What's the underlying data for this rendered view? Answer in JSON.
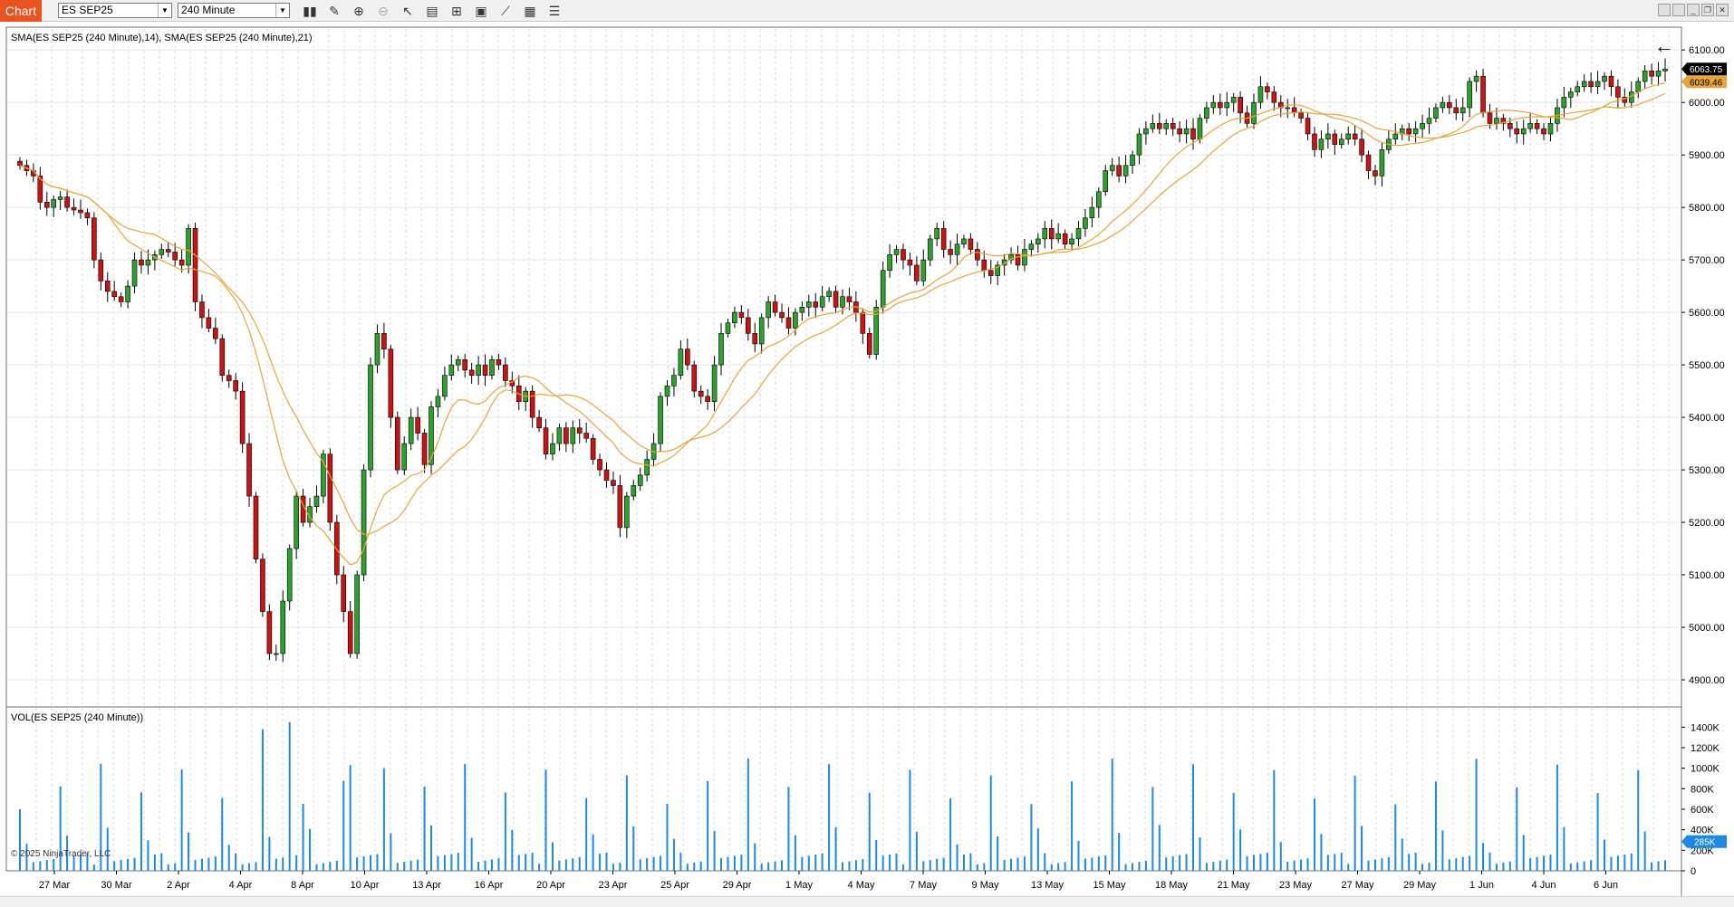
{
  "toolbar": {
    "tab_label": "Chart",
    "instrument": "ES SEP25",
    "interval": "240 Minute",
    "icons": [
      "bar-type-icon",
      "drawing-pencil-icon",
      "zoom-in-icon",
      "zoom-out-icon",
      "pointer-icon",
      "data-box-icon",
      "properties-icon",
      "templates-icon",
      "strategies-icon",
      "list-icon"
    ],
    "window_buttons": [
      "tile-icon",
      "tile2-icon",
      "minimize-icon",
      "restore-icon",
      "close-icon"
    ]
  },
  "price_panel": {
    "indicator_label": "SMA(ES SEP25 (240 Minute),14), SMA(ES SEP25 (240 Minute),21)",
    "y_ticks": [
      "6100.00",
      "6000.00",
      "5900.00",
      "5800.00",
      "5700.00",
      "5600.00",
      "5500.00",
      "5400.00",
      "5300.00",
      "5200.00",
      "5100.00",
      "5000.00",
      "4900.00"
    ],
    "last_price": "6063.75",
    "sma_value": "6039.46",
    "last_price_color": "#000000",
    "sma_color": "#e8a53a",
    "up_color": "#2ea02e",
    "down_color": "#c81414"
  },
  "volume_panel": {
    "label": "VOL(ES SEP25 (240 Minute))",
    "y_ticks": [
      "1400K",
      "1200K",
      "1000K",
      "800K",
      "600K",
      "400K",
      "200K",
      "0"
    ],
    "last_volume": "285K",
    "bar_color": "#1e88e5"
  },
  "x_axis": {
    "labels": [
      "27 Mar",
      "30 Mar",
      "2 Apr",
      "4 Apr",
      "8 Apr",
      "10 Apr",
      "13 Apr",
      "16 Apr",
      "20 Apr",
      "23 Apr",
      "25 Apr",
      "29 Apr",
      "1 May",
      "4 May",
      "7 May",
      "9 May",
      "13 May",
      "15 May",
      "18 May",
      "21 May",
      "23 May",
      "27 May",
      "29 May",
      "1 Jun",
      "4 Jun",
      "6 Jun"
    ]
  },
  "copyright": "© 2025 NinjaTrader, LLC",
  "chart_data": {
    "type": "candlestick",
    "ylim": [
      4850,
      6140
    ],
    "closes": [
      5880,
      5870,
      5860,
      5810,
      5800,
      5815,
      5820,
      5800,
      5795,
      5790,
      5780,
      5700,
      5660,
      5640,
      5630,
      5620,
      5650,
      5700,
      5690,
      5700,
      5710,
      5720,
      5715,
      5700,
      5690,
      5760,
      5620,
      5590,
      5570,
      5550,
      5480,
      5470,
      5450,
      5350,
      5250,
      5130,
      5030,
      4950,
      4950,
      5050,
      5150,
      5250,
      5200,
      5230,
      5250,
      5330,
      5200,
      5100,
      5030,
      4950,
      5100,
      5300,
      5500,
      5560,
      5530,
      5400,
      5300,
      5350,
      5400,
      5370,
      5310,
      5420,
      5440,
      5480,
      5500,
      5510,
      5490,
      5480,
      5500,
      5480,
      5510,
      5500,
      5470,
      5460,
      5430,
      5450,
      5400,
      5380,
      5330,
      5350,
      5380,
      5350,
      5380,
      5370,
      5360,
      5320,
      5300,
      5280,
      5270,
      5190,
      5250,
      5270,
      5290,
      5320,
      5350,
      5440,
      5460,
      5480,
      5530,
      5500,
      5450,
      5440,
      5430,
      5500,
      5560,
      5580,
      5600,
      5590,
      5560,
      5540,
      5590,
      5620,
      5600,
      5590,
      5570,
      5600,
      5610,
      5620,
      5610,
      5630,
      5640,
      5610,
      5630,
      5620,
      5600,
      5560,
      5520,
      5610,
      5680,
      5710,
      5720,
      5700,
      5690,
      5660,
      5700,
      5740,
      5760,
      5720,
      5710,
      5730,
      5740,
      5720,
      5700,
      5680,
      5670,
      5690,
      5700,
      5710,
      5690,
      5720,
      5730,
      5740,
      5760,
      5740,
      5750,
      5730,
      5740,
      5760,
      5780,
      5800,
      5830,
      5870,
      5880,
      5860,
      5880,
      5900,
      5940,
      5950,
      5960,
      5950,
      5960,
      5950,
      5940,
      5950,
      5930,
      5970,
      5990,
      6000,
      5990,
      6000,
      6010,
      5980,
      5960,
      6000,
      6030,
      6020,
      6000,
      5990,
      5990,
      5980,
      5970,
      5940,
      5910,
      5930,
      5940,
      5920,
      5930,
      5940,
      5930,
      5900,
      5870,
      5860,
      5910,
      5930,
      5940,
      5950,
      5940,
      5950,
      5960,
      5970,
      5990,
      6000,
      5990,
      5980,
      5990,
      6040,
      6050,
      5980,
      5960,
      5970,
      5960,
      5950,
      5940,
      5950,
      5960,
      5950,
      5940,
      5960,
      5990,
      6010,
      6020,
      6030,
      6040,
      6030,
      6040,
      6050,
      6030,
      6010,
      6000,
      6020,
      6040,
      6060,
      6050,
      6060,
      6063.75
    ]
  }
}
